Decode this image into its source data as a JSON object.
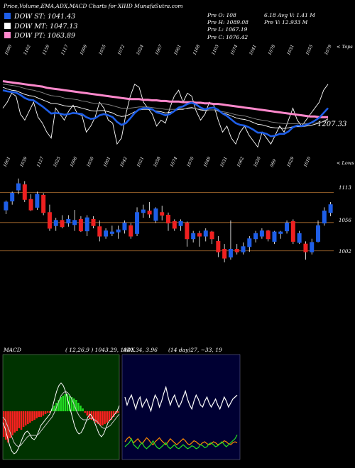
{
  "header": {
    "title": "Price,Volume,EMA,ADX,MACD Charts for XIHD MunafaSutra.com",
    "stats_left": [
      "Pre O: 108",
      "Pre H: 1089.08",
      "Pre L: 1067.19",
      "Pre C: 1076.42"
    ],
    "stats_right": [
      "6.18 Avg V: 1.41 M",
      "Pre V: 12.933 M"
    ]
  },
  "legend": [
    {
      "label": "DOW ST: 1041.43",
      "color": "#1e5ee8"
    },
    {
      "label": "DOW MT: 1047.13",
      "color": "#ffffff"
    },
    {
      "label": "DOW PT: 1063.89",
      "color": "#ff88cc"
    }
  ],
  "side_labels": {
    "tops": "< Tops",
    "lows": "< Lows"
  },
  "last_price_label": "1207.33",
  "chart_data": [
    {
      "type": "line",
      "name": "ema",
      "top_labels": [
        "1090",
        "1162",
        "1159",
        "1117",
        "1099",
        "1055",
        "1072",
        "1024",
        "1067",
        "1061",
        "1168",
        "1103",
        "1074",
        "1041",
        "1078",
        "1031",
        "1055",
        "1079"
      ],
      "bottom_labels": [
        "1061",
        "1039",
        "1127",
        "1025",
        "1096",
        "1050",
        "1001",
        "1042",
        "1021",
        "1058",
        "1074",
        "1070",
        "1049",
        "1031",
        "1062",
        "1026",
        "999",
        "1029",
        "1010"
      ],
      "series": [
        {
          "color": "#ffffff",
          "values": [
            1060,
            1070,
            1085,
            1080,
            1050,
            1040,
            1055,
            1070,
            1045,
            1035,
            1020,
            1010,
            1060,
            1050,
            1040,
            1055,
            1065,
            1050,
            1048,
            1020,
            1030,
            1045,
            1070,
            1060,
            1040,
            1035,
            1000,
            1010,
            1050,
            1080,
            1100,
            1095,
            1070,
            1060,
            1050,
            1030,
            1040,
            1035,
            1060,
            1080,
            1090,
            1070,
            1085,
            1080,
            1055,
            1040,
            1050,
            1070,
            1065,
            1040,
            1020,
            1030,
            1010,
            1000,
            1020,
            1030,
            1015,
            1005,
            995,
            1020,
            1010,
            1000,
            1015,
            1030,
            1020,
            1040,
            1060,
            1040,
            1030,
            1040,
            1050,
            1060,
            1070,
            1090,
            1100
          ]
        },
        {
          "color": "#ffffff",
          "values": [
            1095,
            1092,
            1090,
            1089,
            1086,
            1083,
            1081,
            1080,
            1077,
            1074,
            1071,
            1068,
            1068,
            1066,
            1064,
            1063,
            1063,
            1062,
            1060,
            1058,
            1056,
            1055,
            1056,
            1056,
            1054,
            1052,
            1048,
            1046,
            1047,
            1050,
            1054,
            1057,
            1058,
            1058,
            1057,
            1055,
            1054,
            1052,
            1053,
            1055,
            1058,
            1058,
            1060,
            1061,
            1059,
            1057,
            1056,
            1057,
            1057,
            1055,
            1052,
            1050,
            1047,
            1044,
            1042,
            1041,
            1039,
            1036,
            1033,
            1032,
            1030,
            1028,
            1027,
            1027,
            1026,
            1027,
            1029,
            1029,
            1029,
            1030,
            1031,
            1033,
            1035,
            1038,
            1042
          ]
        },
        {
          "color": "#888888",
          "values": [
            1100,
            1099,
            1098,
            1097,
            1095,
            1093,
            1091,
            1090,
            1088,
            1086,
            1083,
            1081,
            1080,
            1079,
            1077,
            1076,
            1075,
            1074,
            1072,
            1071,
            1069,
            1068,
            1068,
            1067,
            1066,
            1064,
            1062,
            1060,
            1060,
            1060,
            1061,
            1062,
            1062,
            1062,
            1061,
            1060,
            1059,
            1058,
            1058,
            1058,
            1059,
            1059,
            1059,
            1060,
            1059,
            1058,
            1057,
            1057,
            1057,
            1056,
            1054,
            1053,
            1051,
            1049,
            1048,
            1047,
            1045,
            1043,
            1041,
            1040,
            1039,
            1037,
            1036,
            1035,
            1034,
            1034,
            1034,
            1034,
            1034,
            1034,
            1035,
            1035,
            1036,
            1037,
            1039
          ]
        },
        {
          "color": "#ff88cc",
          "values": [
            1105,
            1104,
            1103,
            1102,
            1101,
            1100,
            1099,
            1098,
            1097,
            1096,
            1094,
            1093,
            1092,
            1091,
            1090,
            1089,
            1088,
            1087,
            1086,
            1085,
            1084,
            1083,
            1082,
            1081,
            1080,
            1079,
            1078,
            1077,
            1076,
            1075,
            1075,
            1075,
            1074,
            1074,
            1073,
            1073,
            1072,
            1072,
            1071,
            1071,
            1071,
            1070,
            1070,
            1070,
            1069,
            1069,
            1068,
            1068,
            1067,
            1067,
            1066,
            1065,
            1064,
            1063,
            1062,
            1061,
            1060,
            1059,
            1058,
            1057,
            1056,
            1055,
            1054,
            1053,
            1052,
            1051,
            1050,
            1049,
            1048,
            1047,
            1046,
            1046,
            1045,
            1045,
            1045
          ]
        },
        {
          "color": "#1e5ee8",
          "values": [
            1090,
            1088,
            1087,
            1086,
            1082,
            1077,
            1074,
            1073,
            1068,
            1063,
            1057,
            1051,
            1052,
            1051,
            1049,
            1050,
            1052,
            1051,
            1050,
            1045,
            1042,
            1043,
            1048,
            1050,
            1048,
            1045,
            1037,
            1032,
            1035,
            1043,
            1052,
            1058,
            1060,
            1060,
            1058,
            1053,
            1051,
            1048,
            1050,
            1055,
            1061,
            1063,
            1067,
            1069,
            1066,
            1061,
            1058,
            1060,
            1061,
            1057,
            1051,
            1047,
            1041,
            1035,
            1032,
            1031,
            1028,
            1024,
            1019,
            1019,
            1017,
            1013,
            1014,
            1017,
            1017,
            1021,
            1028,
            1031,
            1030,
            1032,
            1035,
            1039,
            1044,
            1052,
            1060
          ]
        }
      ],
      "yrange": [
        980,
        1140
      ]
    },
    {
      "type": "candlestick",
      "name": "price",
      "levels": [
        {
          "label": "1113",
          "value": 1113
        },
        {
          "label": "1056",
          "value": 1056
        },
        {
          "label": "1002",
          "value": 1002
        }
      ],
      "yrange": [
        980,
        1145
      ],
      "candles": [
        [
          1080,
          1098,
          1072,
          1095
        ],
        [
          1097,
          1115,
          1090,
          1112
        ],
        [
          1118,
          1140,
          1110,
          1130
        ],
        [
          1128,
          1135,
          1095,
          1100
        ],
        [
          1100,
          1110,
          1078,
          1080
        ],
        [
          1085,
          1115,
          1080,
          1110
        ],
        [
          1108,
          1112,
          1070,
          1075
        ],
        [
          1075,
          1090,
          1040,
          1045
        ],
        [
          1050,
          1065,
          1040,
          1060
        ],
        [
          1060,
          1070,
          1045,
          1048
        ],
        [
          1055,
          1070,
          1048,
          1062
        ],
        [
          1052,
          1080,
          1040,
          1060
        ],
        [
          1062,
          1068,
          1038,
          1040
        ],
        [
          1040,
          1070,
          1030,
          1065
        ],
        [
          1062,
          1068,
          1045,
          1050
        ],
        [
          1048,
          1060,
          1020,
          1030
        ],
        [
          1030,
          1045,
          1025,
          1040
        ],
        [
          1035,
          1050,
          1030,
          1038
        ],
        [
          1038,
          1050,
          1025,
          1042
        ],
        [
          1042,
          1060,
          1035,
          1055
        ],
        [
          1050,
          1055,
          1025,
          1030
        ],
        [
          1035,
          1085,
          1030,
          1075
        ],
        [
          1075,
          1090,
          1065,
          1080
        ],
        [
          1078,
          1095,
          1065,
          1072
        ],
        [
          1060,
          1085,
          1055,
          1082
        ],
        [
          1075,
          1088,
          1060,
          1070
        ],
        [
          1070,
          1075,
          1040,
          1055
        ],
        [
          1058,
          1062,
          1040,
          1045
        ],
        [
          1050,
          1062,
          1040,
          1058
        ],
        [
          1055,
          1058,
          1010,
          1025
        ],
        [
          1025,
          1040,
          1018,
          1035
        ],
        [
          1035,
          1040,
          1010,
          1030
        ],
        [
          1030,
          1045,
          1020,
          1040
        ],
        [
          1038,
          1040,
          1015,
          1025
        ],
        [
          1020,
          1030,
          990,
          1000
        ],
        [
          1005,
          1015,
          980,
          988
        ],
        [
          990,
          1060,
          985,
          1005
        ],
        [
          1005,
          1015,
          995,
          1000
        ],
        [
          1000,
          1018,
          995,
          1010
        ],
        [
          1010,
          1030,
          1000,
          1025
        ],
        [
          1025,
          1040,
          1018,
          1035
        ],
        [
          1030,
          1045,
          1025,
          1040
        ],
        [
          1040,
          1042,
          1020,
          1025
        ],
        [
          1020,
          1040,
          1015,
          1038
        ],
        [
          1035,
          1040,
          1025,
          1038
        ],
        [
          1040,
          1060,
          1035,
          1055
        ],
        [
          1058,
          1062,
          1015,
          1020
        ],
        [
          1018,
          1040,
          1015,
          1035
        ],
        [
          1015,
          1020,
          985,
          1000
        ],
        [
          1000,
          1025,
          995,
          1018
        ],
        [
          1020,
          1060,
          1018,
          1050
        ],
        [
          1055,
          1085,
          1050,
          1078
        ],
        [
          1075,
          1095,
          1068,
          1090
        ]
      ]
    },
    {
      "type": "bar",
      "name": "macd",
      "title": "MACD",
      "params": "( 12,26,9 ) 1043.29, 1041.34, 3.96",
      "hist": [
        -18,
        -20,
        -22,
        -19,
        -17,
        -15,
        -14,
        -12,
        -13,
        -11,
        -10,
        -9,
        -8,
        -7,
        -6,
        -5,
        -4,
        -4,
        -3,
        -2,
        -1,
        -1,
        2,
        4,
        6,
        8,
        10,
        11,
        12,
        12,
        11,
        10,
        9,
        8,
        6,
        4,
        2,
        -1,
        -3,
        -5,
        -6,
        -7,
        -8,
        -9,
        -10,
        -10,
        -9,
        -8,
        -7,
        -6,
        -4,
        -2,
        -1
      ],
      "macd": [
        -8,
        -12,
        -18,
        -24,
        -28,
        -30,
        -29,
        -26,
        -22,
        -18,
        -15,
        -14,
        -16,
        -19,
        -20,
        -18,
        -14,
        -10,
        -8,
        -6,
        -4,
        -2,
        2,
        8,
        14,
        18,
        20,
        18,
        14,
        8,
        2,
        -4,
        -10,
        -14,
        -16,
        -15,
        -12,
        -8,
        -4,
        -2,
        -4,
        -8,
        -12,
        -16,
        -18,
        -16,
        -12,
        -8,
        -6,
        -4,
        -2,
        0,
        4
      ],
      "signal": [
        -4,
        -6,
        -10,
        -14,
        -18,
        -22,
        -24,
        -25,
        -24,
        -22,
        -20,
        -18,
        -17,
        -17,
        -17,
        -17,
        -16,
        -14,
        -12,
        -10,
        -8,
        -6,
        -4,
        -1,
        3,
        7,
        11,
        13,
        14,
        13,
        11,
        8,
        4,
        0,
        -3,
        -5,
        -6,
        -6,
        -6,
        -5,
        -5,
        -6,
        -7,
        -9,
        -11,
        -12,
        -12,
        -11,
        -10,
        -8,
        -6,
        -4,
        -2
      ]
    },
    {
      "type": "line",
      "name": "adx",
      "title": "ADX",
      "params": "(14 day)27, ~33, 19",
      "series": [
        {
          "name": "",
          "color": "#ffffff",
          "values": [
            60,
            52,
            58,
            62,
            55,
            48,
            56,
            60,
            50,
            54,
            58,
            52,
            46,
            55,
            62,
            58,
            50,
            56,
            64,
            70,
            60,
            52,
            58,
            62,
            55,
            50,
            54,
            60,
            66,
            58,
            52,
            48,
            56,
            62,
            58,
            52,
            50,
            56,
            60,
            54,
            50,
            54,
            58,
            52,
            48,
            54,
            60,
            56,
            50,
            54,
            58,
            60,
            62
          ]
        },
        {
          "name": "",
          "color": "#ff8a00",
          "values": [
            15,
            18,
            20,
            17,
            14,
            16,
            18,
            15,
            13,
            16,
            19,
            17,
            14,
            12,
            15,
            17,
            19,
            16,
            14,
            12,
            15,
            18,
            16,
            14,
            12,
            14,
            16,
            18,
            16,
            13,
            12,
            14,
            16,
            15,
            13,
            12,
            14,
            15,
            13,
            12,
            13,
            15,
            14,
            12,
            13,
            14,
            16,
            15,
            13,
            12,
            14,
            15,
            14
          ]
        },
        {
          "name": "",
          "color": "#22dd22",
          "values": [
            10,
            12,
            14,
            18,
            12,
            10,
            8,
            12,
            14,
            10,
            8,
            10,
            12,
            16,
            12,
            9,
            8,
            10,
            12,
            14,
            10,
            8,
            10,
            12,
            9,
            8,
            10,
            12,
            10,
            8,
            9,
            11,
            10,
            8,
            9,
            12,
            11,
            9,
            10,
            13,
            14,
            12,
            10,
            11,
            13,
            15,
            12,
            10,
            12,
            14,
            16,
            18,
            22
          ]
        }
      ],
      "yrange": [
        0,
        100
      ]
    }
  ]
}
